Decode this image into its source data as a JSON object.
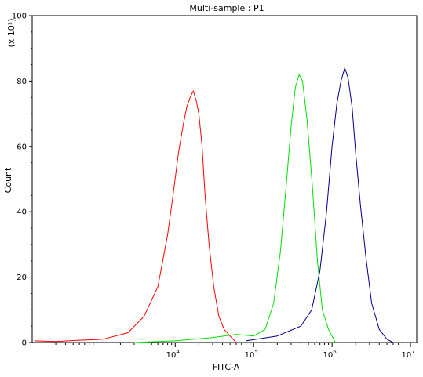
{
  "chart_data": {
    "type": "line",
    "title": "Multi-sample : P1",
    "xlabel": "FITC-A",
    "ylabel": "Count",
    "y_multiplier_label": "(x 10¹)",
    "x_scale": "log",
    "xlim": [
      150,
      12000000
    ],
    "ylim": [
      0,
      100
    ],
    "grid": false,
    "x_ticks": [
      {
        "value": 10000,
        "base": "10",
        "exponent": "4"
      },
      {
        "value": 100000,
        "base": "10",
        "exponent": "5"
      },
      {
        "value": 1000000,
        "base": "10",
        "exponent": "6"
      },
      {
        "value": 10000000,
        "base": "10",
        "exponent": "7"
      }
    ],
    "y_ticks": [
      "0",
      "20",
      "40",
      "60",
      "80",
      "100"
    ],
    "series": [
      {
        "color": "#ff0000",
        "x": [
          160,
          300,
          600,
          1200,
          2500,
          4000,
          6000,
          8000,
          9500,
          11000,
          12500,
          14000,
          15500,
          17000,
          18500,
          20000,
          22000,
          24000,
          27000,
          31000,
          36000,
          42000,
          50000,
          60000
        ],
        "y": [
          0.5,
          0.3,
          0.7,
          1,
          3,
          8,
          17,
          33,
          46,
          58,
          66,
          72,
          75,
          77,
          74,
          70,
          60,
          45,
          30,
          17,
          8,
          4,
          2,
          0
        ]
      },
      {
        "color": "#00e000",
        "x": [
          3000,
          10000,
          30000,
          60000,
          100000,
          140000,
          180000,
          220000,
          260000,
          300000,
          340000,
          380000,
          420000,
          480000,
          560000,
          650000,
          750000,
          900000,
          1100000
        ],
        "y": [
          0,
          0.5,
          1.5,
          2.5,
          2,
          4,
          12,
          28,
          48,
          66,
          78,
          82,
          80,
          68,
          48,
          25,
          10,
          4,
          0
        ]
      },
      {
        "color": "#00008b",
        "x": [
          80000,
          200000,
          400000,
          550000,
          700000,
          850000,
          1000000,
          1150000,
          1300000,
          1450000,
          1600000,
          1800000,
          2000000,
          2300000,
          2700000,
          3200000,
          4000000,
          5000000,
          6000000
        ],
        "y": [
          0.5,
          2,
          5,
          10,
          22,
          40,
          60,
          73,
          80,
          84,
          81,
          72,
          58,
          42,
          26,
          12,
          4,
          1,
          0
        ]
      }
    ]
  }
}
